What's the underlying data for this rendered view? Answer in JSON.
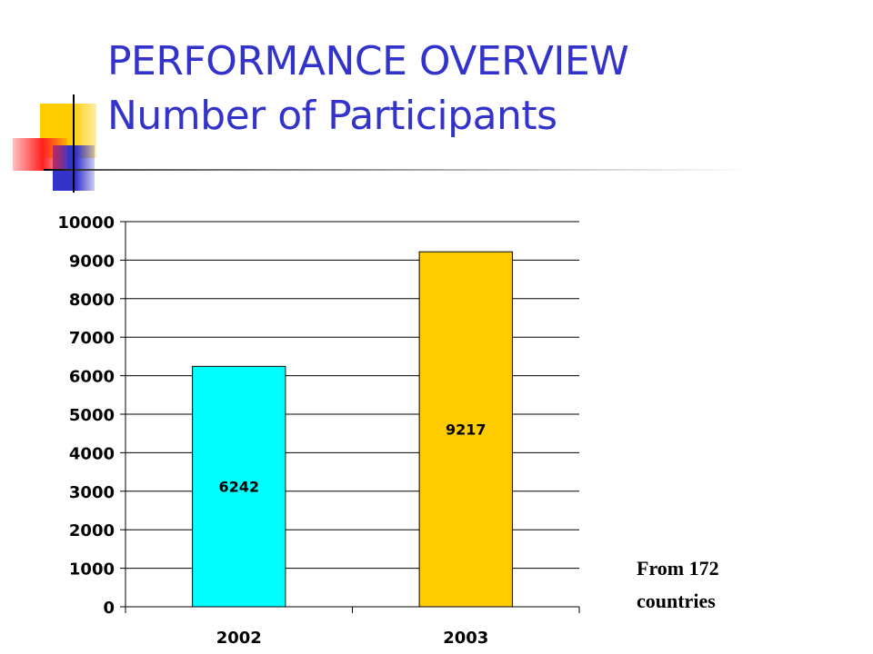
{
  "slide": {
    "title_line1": "PERFORMANCE OVERVIEW",
    "title_line2": "Number of Participants",
    "note_line1": "From 172",
    "note_line2": "countries"
  },
  "chart_data": {
    "type": "bar",
    "categories": [
      "2002",
      "2003"
    ],
    "values": [
      6242,
      9217
    ],
    "data_labels": [
      "6242",
      "9217"
    ],
    "bar_colors": [
      "#00ffff",
      "#ffcc00"
    ],
    "ylim": [
      0,
      10000
    ],
    "yticks": [
      "0",
      "1000",
      "2000",
      "3000",
      "4000",
      "5000",
      "6000",
      "7000",
      "8000",
      "9000",
      "10000"
    ],
    "grid": true,
    "legend": "none"
  }
}
